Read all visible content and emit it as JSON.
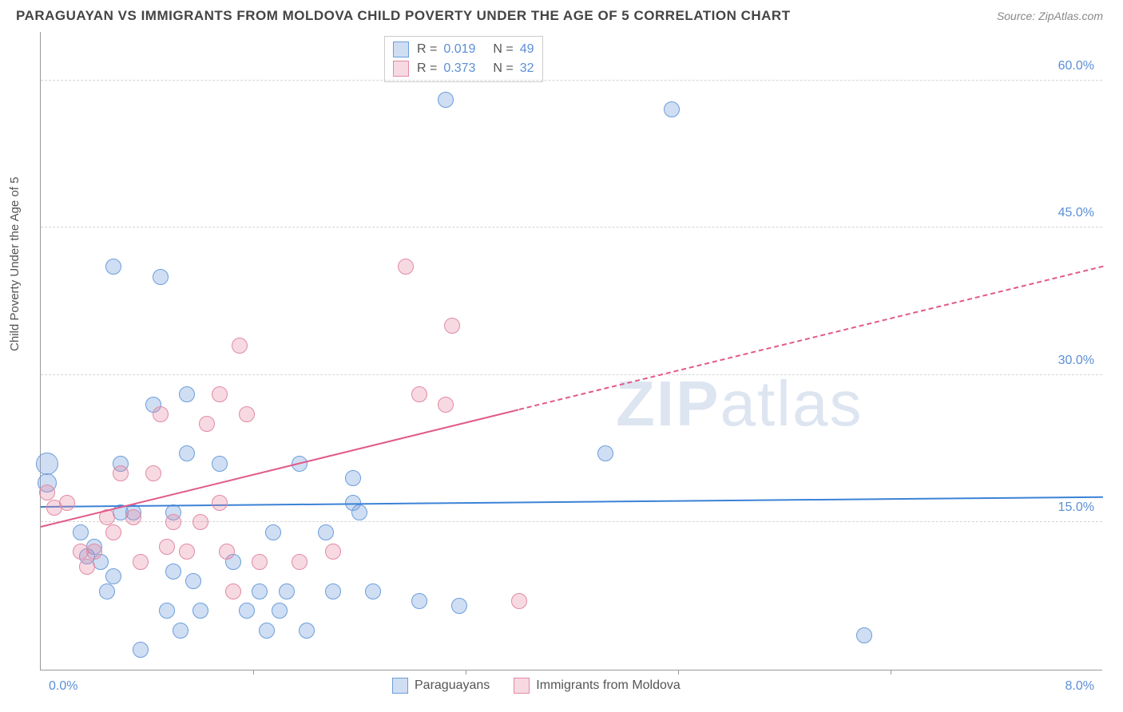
{
  "title": "PARAGUAYAN VS IMMIGRANTS FROM MOLDOVA CHILD POVERTY UNDER THE AGE OF 5 CORRELATION CHART",
  "source": "Source: ZipAtlas.com",
  "ylabel": "Child Poverty Under the Age of 5",
  "watermark_a": "ZIP",
  "watermark_b": "atlas",
  "chart": {
    "type": "scatter",
    "xlim": [
      0,
      8
    ],
    "ylim": [
      0,
      65
    ],
    "x_axis": {
      "left_label": "0.0%",
      "right_label": "8.0%",
      "ticks": [
        1.6,
        3.2,
        4.8,
        6.4
      ]
    },
    "y_grid": [
      {
        "value": 15,
        "label": "15.0%"
      },
      {
        "value": 30,
        "label": "30.0%"
      },
      {
        "value": 45,
        "label": "45.0%"
      },
      {
        "value": 60,
        "label": "60.0%"
      }
    ],
    "colors": {
      "series_a_fill": "rgba(120,160,220,0.35)",
      "series_a_stroke": "#6a9edb",
      "series_b_fill": "rgba(230,130,160,0.30)",
      "series_b_stroke": "#e28aa5",
      "trend_a": "#3b82d6",
      "trend_b": "#e15a8a",
      "grid": "#d5d5d5",
      "xtick_label": "#5b8fd6"
    },
    "marker_radius": 10,
    "series": [
      {
        "key": "a",
        "label": "Paraguayans",
        "R": "0.019",
        "N": "49",
        "trend": {
          "x1": 0,
          "y1": 16.5,
          "x2": 8,
          "y2": 17.5,
          "dashed": false,
          "solid_until": 8
        },
        "points": [
          {
            "x": 0.05,
            "y": 21,
            "r": 14
          },
          {
            "x": 0.05,
            "y": 19,
            "r": 12
          },
          {
            "x": 0.55,
            "y": 41
          },
          {
            "x": 0.6,
            "y": 21
          },
          {
            "x": 0.6,
            "y": 16
          },
          {
            "x": 0.4,
            "y": 12.5
          },
          {
            "x": 0.45,
            "y": 11
          },
          {
            "x": 0.3,
            "y": 14
          },
          {
            "x": 0.35,
            "y": 11.5
          },
          {
            "x": 0.5,
            "y": 8
          },
          {
            "x": 0.55,
            "y": 9.5
          },
          {
            "x": 0.7,
            "y": 16
          },
          {
            "x": 0.75,
            "y": 2
          },
          {
            "x": 0.85,
            "y": 27
          },
          {
            "x": 0.9,
            "y": 40
          },
          {
            "x": 0.95,
            "y": 6
          },
          {
            "x": 1.0,
            "y": 16
          },
          {
            "x": 1.0,
            "y": 10
          },
          {
            "x": 1.05,
            "y": 4
          },
          {
            "x": 1.1,
            "y": 28
          },
          {
            "x": 1.1,
            "y": 22
          },
          {
            "x": 1.15,
            "y": 9
          },
          {
            "x": 1.2,
            "y": 6
          },
          {
            "x": 1.35,
            "y": 21
          },
          {
            "x": 1.45,
            "y": 11
          },
          {
            "x": 1.55,
            "y": 6
          },
          {
            "x": 1.65,
            "y": 8
          },
          {
            "x": 1.7,
            "y": 4
          },
          {
            "x": 1.75,
            "y": 14
          },
          {
            "x": 1.8,
            "y": 6
          },
          {
            "x": 1.85,
            "y": 8
          },
          {
            "x": 1.95,
            "y": 21
          },
          {
            "x": 2.0,
            "y": 4
          },
          {
            "x": 2.15,
            "y": 14
          },
          {
            "x": 2.2,
            "y": 8
          },
          {
            "x": 2.35,
            "y": 17
          },
          {
            "x": 2.4,
            "y": 16
          },
          {
            "x": 2.35,
            "y": 19.5
          },
          {
            "x": 2.5,
            "y": 8
          },
          {
            "x": 2.85,
            "y": 7
          },
          {
            "x": 3.05,
            "y": 58
          },
          {
            "x": 3.15,
            "y": 6.5
          },
          {
            "x": 4.25,
            "y": 22
          },
          {
            "x": 4.75,
            "y": 57
          },
          {
            "x": 6.2,
            "y": 3.5
          }
        ]
      },
      {
        "key": "b",
        "label": "Immigrants from Moldova",
        "R": "0.373",
        "N": "32",
        "trend": {
          "x1": 0,
          "y1": 14.5,
          "x2": 8,
          "y2": 41,
          "dashed": true,
          "solid_until": 3.6
        },
        "points": [
          {
            "x": 0.05,
            "y": 18
          },
          {
            "x": 0.1,
            "y": 16.5
          },
          {
            "x": 0.2,
            "y": 17
          },
          {
            "x": 0.3,
            "y": 12
          },
          {
            "x": 0.35,
            "y": 10.5
          },
          {
            "x": 0.4,
            "y": 12
          },
          {
            "x": 0.5,
            "y": 15.5
          },
          {
            "x": 0.55,
            "y": 14
          },
          {
            "x": 0.6,
            "y": 20
          },
          {
            "x": 0.7,
            "y": 15.5
          },
          {
            "x": 0.75,
            "y": 11
          },
          {
            "x": 0.85,
            "y": 20
          },
          {
            "x": 0.9,
            "y": 26
          },
          {
            "x": 0.95,
            "y": 12.5
          },
          {
            "x": 1.0,
            "y": 15
          },
          {
            "x": 1.1,
            "y": 12
          },
          {
            "x": 1.2,
            "y": 15
          },
          {
            "x": 1.25,
            "y": 25
          },
          {
            "x": 1.35,
            "y": 17
          },
          {
            "x": 1.4,
            "y": 12
          },
          {
            "x": 1.45,
            "y": 8
          },
          {
            "x": 1.5,
            "y": 33
          },
          {
            "x": 1.35,
            "y": 28
          },
          {
            "x": 1.55,
            "y": 26
          },
          {
            "x": 1.65,
            "y": 11
          },
          {
            "x": 1.95,
            "y": 11
          },
          {
            "x": 2.2,
            "y": 12
          },
          {
            "x": 2.75,
            "y": 41
          },
          {
            "x": 2.85,
            "y": 28
          },
          {
            "x": 3.1,
            "y": 35
          },
          {
            "x": 3.05,
            "y": 27
          },
          {
            "x": 3.6,
            "y": 7
          }
        ]
      }
    ]
  }
}
